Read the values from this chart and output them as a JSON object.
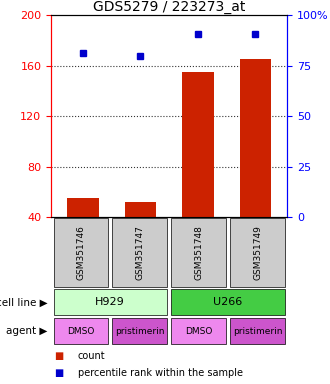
{
  "title": "GDS5279 / 223273_at",
  "samples": [
    "GSM351746",
    "GSM351747",
    "GSM351748",
    "GSM351749"
  ],
  "bar_values": [
    55,
    52,
    155,
    165
  ],
  "percentile_values": [
    170,
    168,
    185,
    185
  ],
  "ylim_left": [
    40,
    200
  ],
  "ylim_right": [
    0,
    100
  ],
  "left_ticks": [
    40,
    80,
    120,
    160,
    200
  ],
  "right_ticks": [
    0,
    25,
    50,
    75,
    100
  ],
  "right_tick_labels": [
    "0",
    "25",
    "50",
    "75",
    "100%"
  ],
  "bar_color": "#cc2200",
  "percentile_color": "#0000cc",
  "dotted_line_values": [
    80,
    120,
    160
  ],
  "cell_lines": [
    {
      "label": "H929",
      "span": [
        0,
        2
      ],
      "color": "#ccffcc"
    },
    {
      "label": "U266",
      "span": [
        2,
        4
      ],
      "color": "#44cc44"
    }
  ],
  "agents": [
    {
      "label": "DMSO",
      "span": [
        0,
        1
      ],
      "color": "#ee88ee"
    },
    {
      "label": "pristimerin",
      "span": [
        1,
        2
      ],
      "color": "#cc55cc"
    },
    {
      "label": "DMSO",
      "span": [
        2,
        3
      ],
      "color": "#ee88ee"
    },
    {
      "label": "pristimerin",
      "span": [
        3,
        4
      ],
      "color": "#cc55cc"
    }
  ],
  "sample_bg_color": "#cccccc",
  "legend_bar_label": "count",
  "legend_pct_label": "percentile rank within the sample",
  "cell_line_label": "cell line",
  "agent_label": "agent",
  "bar_width": 0.55
}
